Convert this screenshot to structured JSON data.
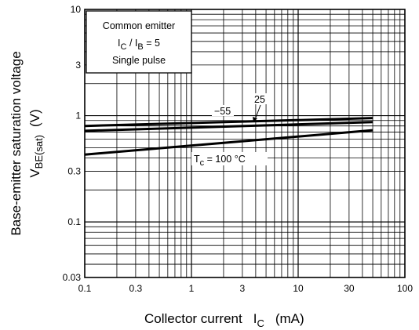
{
  "chart_data": {
    "type": "line",
    "x_scale": "log",
    "y_scale": "log",
    "xlim": [
      0.1,
      100
    ],
    "ylim": [
      0.03,
      10
    ],
    "x_ticks": [
      "0.1",
      "0.3",
      "1",
      "3",
      "10",
      "30",
      "100"
    ],
    "y_ticks": [
      "0.03",
      "0.1",
      "0.3",
      "1",
      "3",
      "10"
    ],
    "x_tick_values": [
      0.1,
      0.3,
      1,
      3,
      10,
      30,
      100
    ],
    "y_tick_values": [
      0.03,
      0.1,
      0.3,
      1,
      3,
      10
    ],
    "xlabel": {
      "main": "Collector current",
      "symbol": "I",
      "subscript": "C",
      "unit": "(mA)"
    },
    "ylabel": {
      "line1": "Base-emitter saturation voltage",
      "symbol": "V",
      "subscript": "BE(sat)",
      "unit": "(V)"
    },
    "grid": true,
    "legend_box": {
      "line1": "Common emitter",
      "line2_prefix": "I",
      "line2_sub1": "C",
      "line2_mid": " / I",
      "line2_sub2": "B",
      "line2_suffix": " = 5",
      "line3": "Single pulse"
    },
    "series": [
      {
        "label": "−55",
        "x": [
          0.1,
          50
        ],
        "y": [
          0.8,
          0.95
        ]
      },
      {
        "label": "25",
        "x": [
          0.1,
          50
        ],
        "y": [
          0.72,
          0.87
        ]
      },
      {
        "label": "T",
        "label_sub": "c",
        "label_rest": " = 100 °C",
        "x": [
          0.1,
          50
        ],
        "y": [
          0.43,
          0.73
        ]
      }
    ]
  }
}
